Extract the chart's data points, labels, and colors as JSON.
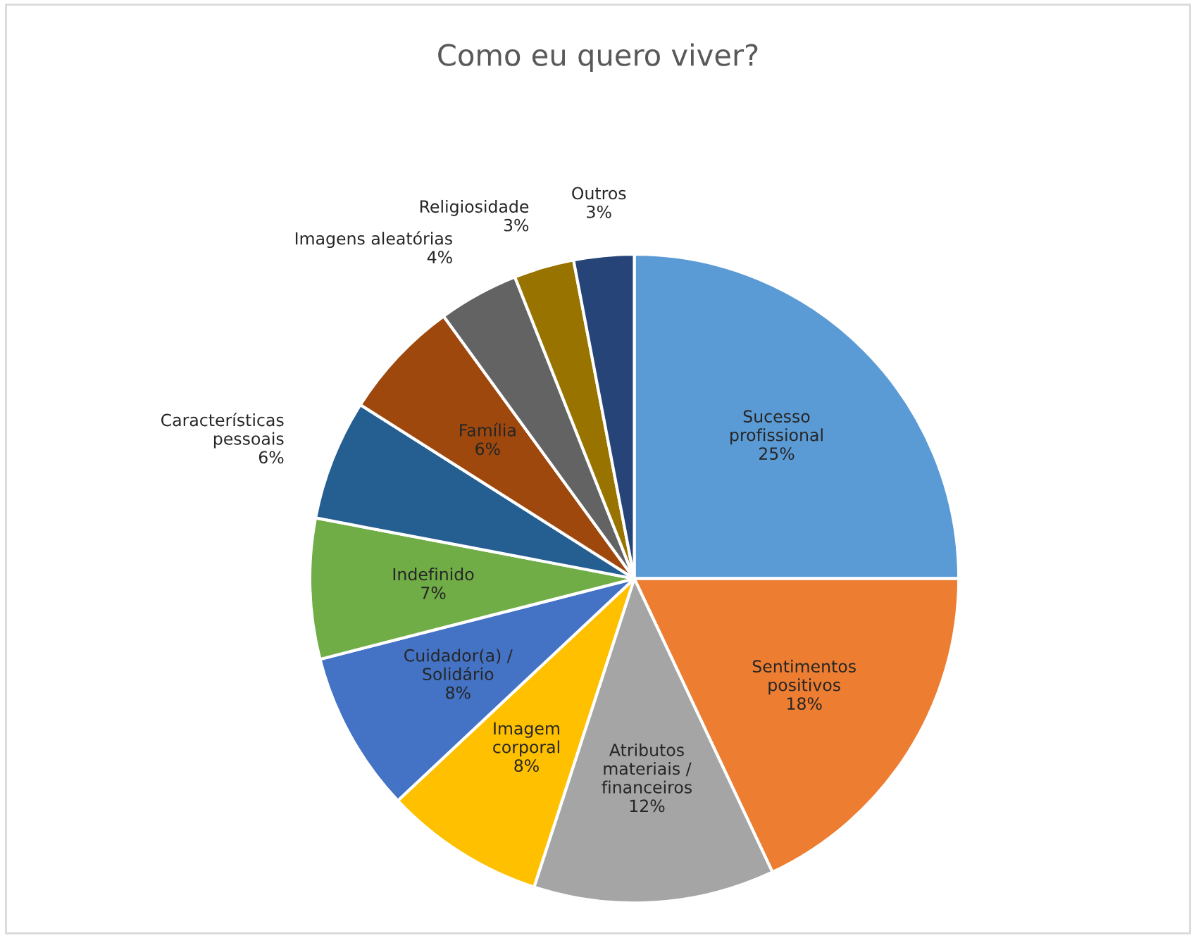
{
  "chart_data": {
    "type": "pie",
    "title": "Como eu quero viver?",
    "categories": [
      "Sucesso profissional",
      "Sentimentos positivos",
      "Atributos materiais / financeiros",
      "Imagem corporal",
      "Cuidador(a) / Solidário",
      "Indefinido",
      "Características pessoais",
      "Família",
      "Imagens aleatórias",
      "Religiosidade",
      "Outros"
    ],
    "values": [
      25,
      18,
      12,
      8,
      8,
      7,
      6,
      6,
      4,
      3,
      3
    ],
    "colors": [
      "#5b9bd5",
      "#ed7d31",
      "#a5a5a5",
      "#ffc000",
      "#4472c4",
      "#70ad47",
      "#255e91",
      "#9e480e",
      "#636363",
      "#997300",
      "#264478"
    ],
    "value_labels": [
      "25%",
      "18%",
      "12%",
      "8%",
      "8%",
      "7%",
      "6%",
      "6%",
      "4%",
      "3%",
      "3%"
    ],
    "legend": false
  }
}
